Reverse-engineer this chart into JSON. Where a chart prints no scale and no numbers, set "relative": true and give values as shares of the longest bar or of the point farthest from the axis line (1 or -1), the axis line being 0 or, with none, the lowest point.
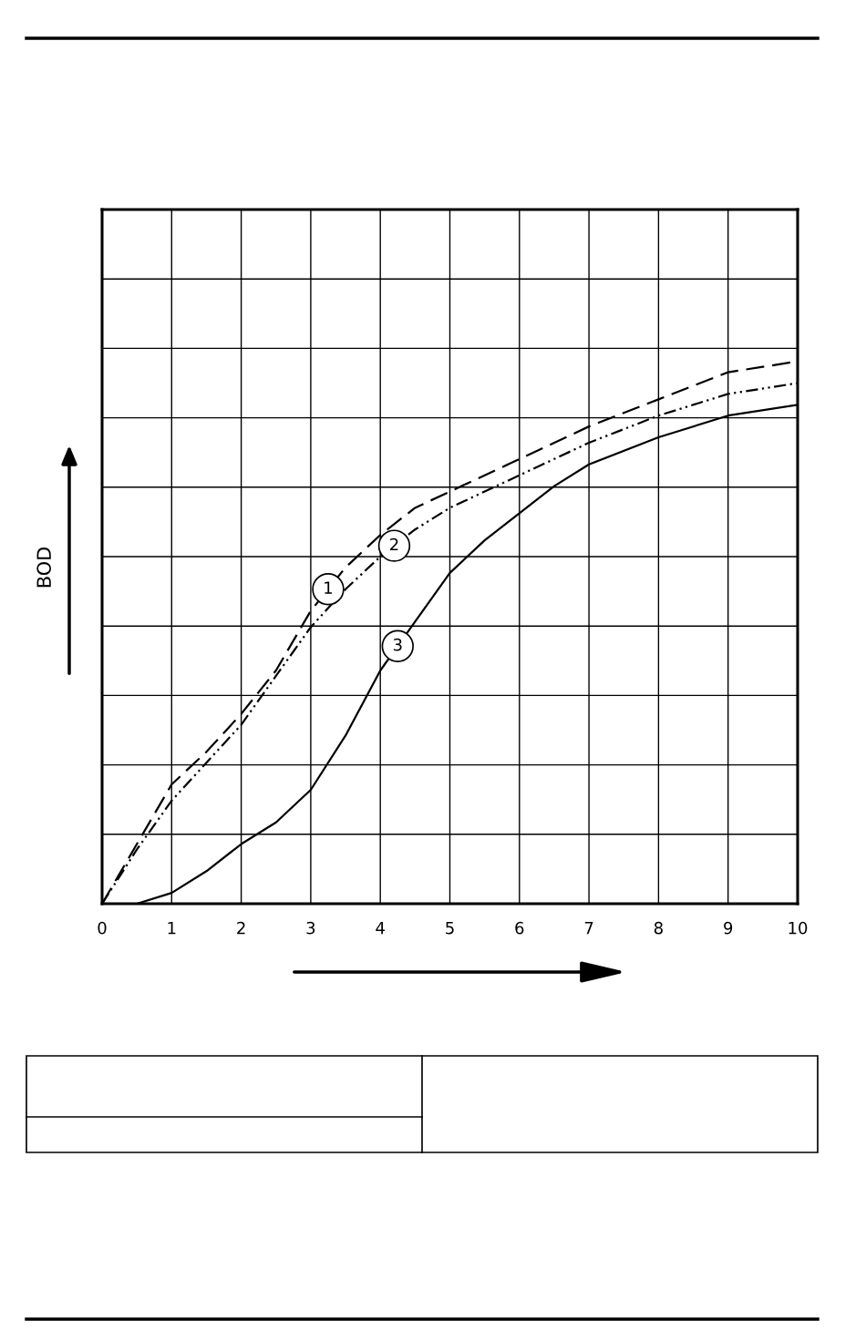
{
  "chart_data": {
    "type": "line",
    "ylabel": "BOD",
    "relative": true,
    "xlim": [
      0,
      10
    ],
    "xticks": [
      0,
      1,
      2,
      3,
      4,
      5,
      6,
      7,
      8,
      9,
      10
    ],
    "grid": true,
    "tick_labels": "x",
    "series": [
      {
        "name": "1",
        "color": "#000000",
        "line_style": "dashed",
        "x": [
          0,
          0.5,
          1,
          1.5,
          2,
          2.5,
          3,
          3.5,
          4,
          4.5,
          5,
          6,
          7,
          8,
          9,
          10
        ],
        "values": [
          0,
          0.11,
          0.22,
          0.28,
          0.35,
          0.43,
          0.54,
          0.62,
          0.68,
          0.73,
          0.76,
          0.82,
          0.88,
          0.93,
          0.98,
          1
        ]
      },
      {
        "name": "2",
        "color": "#000000",
        "line_style": "dotted",
        "x": [
          0,
          0.5,
          1,
          1.5,
          2,
          2.5,
          3,
          3.5,
          4,
          4.5,
          5,
          6,
          7,
          8,
          9,
          10
        ],
        "values": [
          0,
          0.1,
          0.19,
          0.26,
          0.33,
          0.42,
          0.51,
          0.58,
          0.64,
          0.69,
          0.73,
          0.79,
          0.85,
          0.9,
          0.94,
          0.96
        ]
      },
      {
        "name": "3",
        "color": "#000000",
        "line_style": "solid",
        "x": [
          0,
          0.5,
          1,
          1.5,
          2,
          2.5,
          3,
          3.5,
          4,
          4.5,
          5,
          5.5,
          6,
          6.5,
          7,
          8,
          9,
          10
        ],
        "values": [
          0,
          0,
          0.02,
          0.06,
          0.11,
          0.15,
          0.21,
          0.31,
          0.43,
          0.52,
          0.61,
          0.67,
          0.72,
          0.77,
          0.81,
          0.86,
          0.9,
          0.92
        ]
      }
    ]
  }
}
